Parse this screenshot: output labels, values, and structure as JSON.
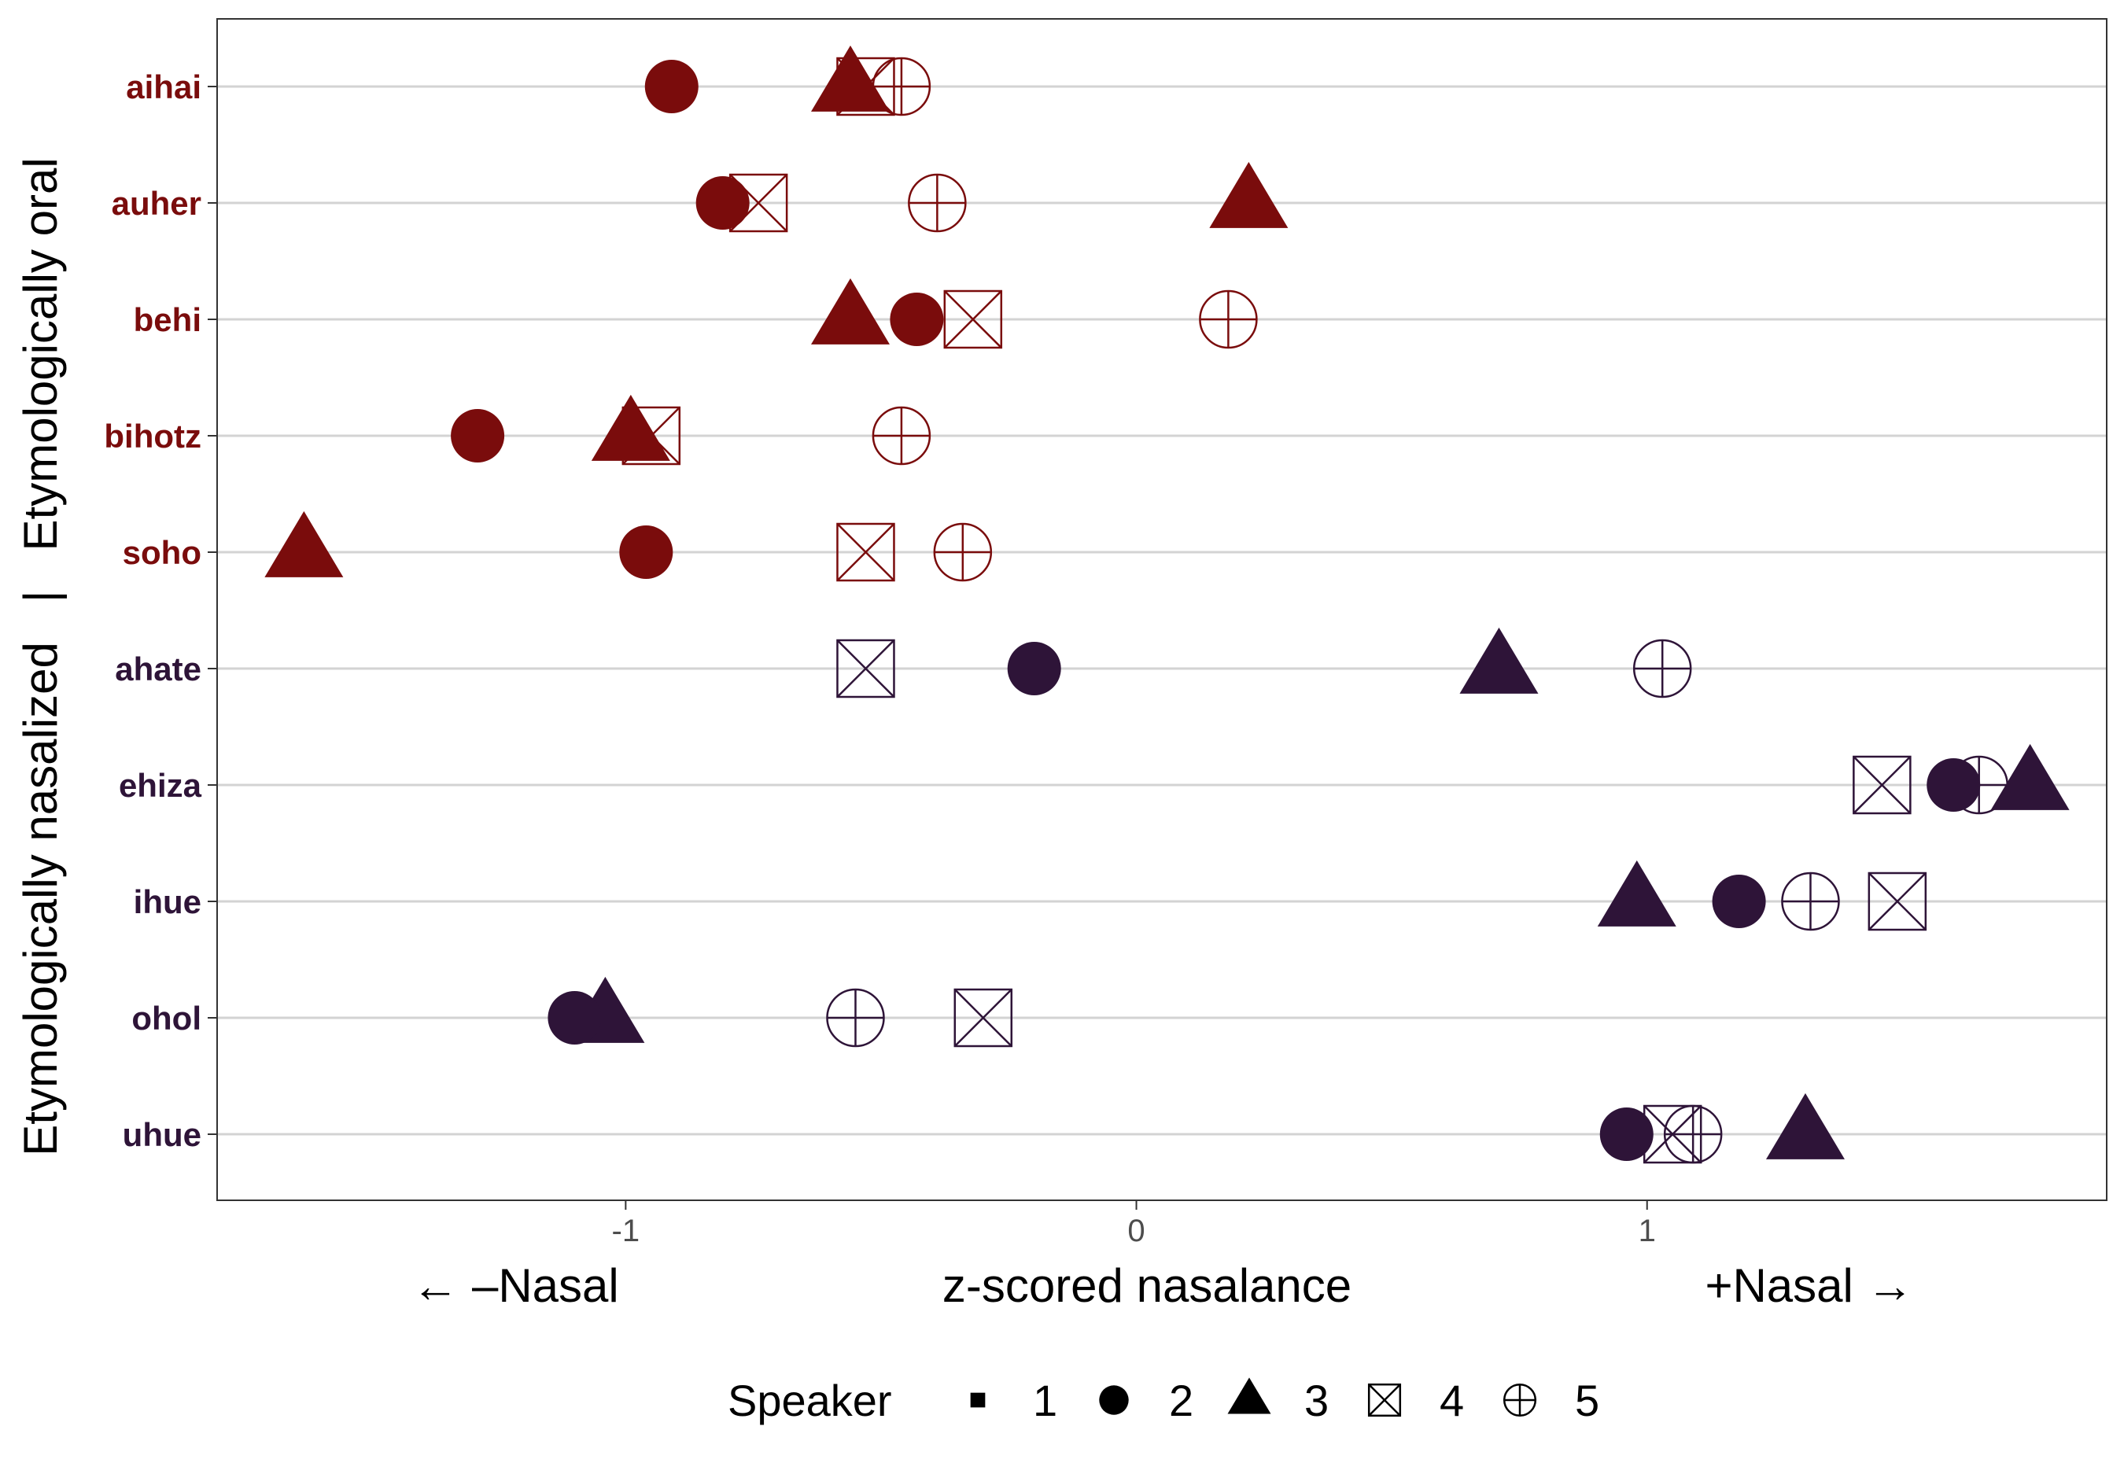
{
  "chart_data": {
    "type": "scatter",
    "xlabel": "z-scored nasalance",
    "xlabel_left": "← –Nasal",
    "xlabel_right": "+Nasal →",
    "ylabel": "Etymologically nasalized   |   Etymologically oral",
    "xlim": [
      -1.8,
      1.9
    ],
    "x_ticks": [
      {
        "value": -1,
        "label": "-1"
      },
      {
        "value": 0,
        "label": "0"
      },
      {
        "value": 1,
        "label": "1"
      }
    ],
    "categories": [
      "aihai",
      "auher",
      "behi",
      "bihotz",
      "soho",
      "ahate",
      "ehiza",
      "ihue",
      "ohol",
      "uhue"
    ],
    "groups": [
      {
        "name": "Etymologically oral",
        "color": "#7a0c0c",
        "words": [
          "aihai",
          "auher",
          "behi",
          "bihotz",
          "soho"
        ]
      },
      {
        "name": "Etymologically nasalized",
        "color": "#2e1438",
        "words": [
          "ahate",
          "ehiza",
          "ihue",
          "ohol",
          "uhue"
        ]
      }
    ],
    "grid": {
      "horizontal": true,
      "vertical": false
    },
    "legend": {
      "title": "Speaker",
      "placement": "bottom",
      "entries": [
        {
          "label": "1",
          "shape": "square"
        },
        {
          "label": "2",
          "shape": "circle"
        },
        {
          "label": "3",
          "shape": "triangle"
        },
        {
          "label": "4",
          "shape": "boxcross"
        },
        {
          "label": "5",
          "shape": "circleplus"
        }
      ]
    },
    "series": [
      {
        "name": "2",
        "shape": "circle",
        "points": [
          {
            "word": "aihai",
            "x": -0.91
          },
          {
            "word": "auher",
            "x": -0.81
          },
          {
            "word": "behi",
            "x": -0.43
          },
          {
            "word": "bihotz",
            "x": -1.29
          },
          {
            "word": "soho",
            "x": -0.96
          },
          {
            "word": "ahate",
            "x": -0.2
          },
          {
            "word": "ehiza",
            "x": 1.6
          },
          {
            "word": "ihue",
            "x": 1.18
          },
          {
            "word": "ohol",
            "x": -1.1
          },
          {
            "word": "uhue",
            "x": 0.96
          }
        ]
      },
      {
        "name": "3",
        "shape": "triangle",
        "points": [
          {
            "word": "aihai",
            "x": -0.56
          },
          {
            "word": "auher",
            "x": 0.22
          },
          {
            "word": "behi",
            "x": -0.56
          },
          {
            "word": "bihotz",
            "x": -0.99
          },
          {
            "word": "soho",
            "x": -1.63
          },
          {
            "word": "ahate",
            "x": 0.71
          },
          {
            "word": "ehiza",
            "x": 1.75
          },
          {
            "word": "ihue",
            "x": 0.98
          },
          {
            "word": "ohol",
            "x": -1.04
          },
          {
            "word": "uhue",
            "x": 1.31
          }
        ]
      },
      {
        "name": "4",
        "shape": "boxcross",
        "points": [
          {
            "word": "aihai",
            "x": -0.53
          },
          {
            "word": "auher",
            "x": -0.74
          },
          {
            "word": "behi",
            "x": -0.32
          },
          {
            "word": "bihotz",
            "x": -0.95
          },
          {
            "word": "soho",
            "x": -0.53
          },
          {
            "word": "ahate",
            "x": -0.53
          },
          {
            "word": "ehiza",
            "x": 1.46
          },
          {
            "word": "ihue",
            "x": 1.49
          },
          {
            "word": "ohol",
            "x": -0.3
          },
          {
            "word": "uhue",
            "x": 1.05
          }
        ]
      },
      {
        "name": "5",
        "shape": "circleplus",
        "points": [
          {
            "word": "aihai",
            "x": -0.46
          },
          {
            "word": "auher",
            "x": -0.39
          },
          {
            "word": "behi",
            "x": 0.18
          },
          {
            "word": "bihotz",
            "x": -0.46
          },
          {
            "word": "soho",
            "x": -0.34
          },
          {
            "word": "ahate",
            "x": 1.03
          },
          {
            "word": "ehiza",
            "x": 1.65
          },
          {
            "word": "ihue",
            "x": 1.32
          },
          {
            "word": "ohol",
            "x": -0.55
          },
          {
            "word": "uhue",
            "x": 1.09
          }
        ]
      }
    ]
  }
}
